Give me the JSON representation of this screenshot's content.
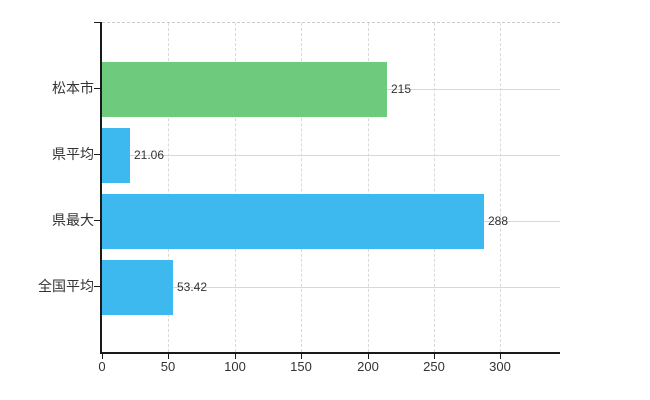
{
  "chart_data": {
    "type": "bar",
    "orientation": "horizontal",
    "title": "",
    "categories": [
      "松本市",
      "県平均",
      "県最大",
      "全国平均"
    ],
    "values": [
      215,
      21.06,
      288,
      53.42
    ],
    "value_labels": [
      "215",
      "21.06",
      "288",
      "53.42"
    ],
    "bar_colors": [
      "#6ecb7d",
      "#3db9f0",
      "#3db9f0",
      "#3db9f0"
    ],
    "x_ticks": [
      0,
      50,
      100,
      150,
      200,
      250,
      300
    ],
    "x_tick_labels": [
      "0",
      "50",
      "100",
      "150",
      "200",
      "250",
      "300"
    ],
    "xlim": [
      0,
      345
    ],
    "grid": true,
    "legend_position": "none"
  },
  "colors": {
    "bar_green": "#6ecb7d",
    "bar_blue": "#3db9f0",
    "axis": "#1a1a1a",
    "grid_vertical": "#d9d9d9",
    "grid_horizontal": "#d4dad4",
    "plot_border_top": "#c9c9c9",
    "text": "#333333",
    "background": "#ffffff"
  }
}
